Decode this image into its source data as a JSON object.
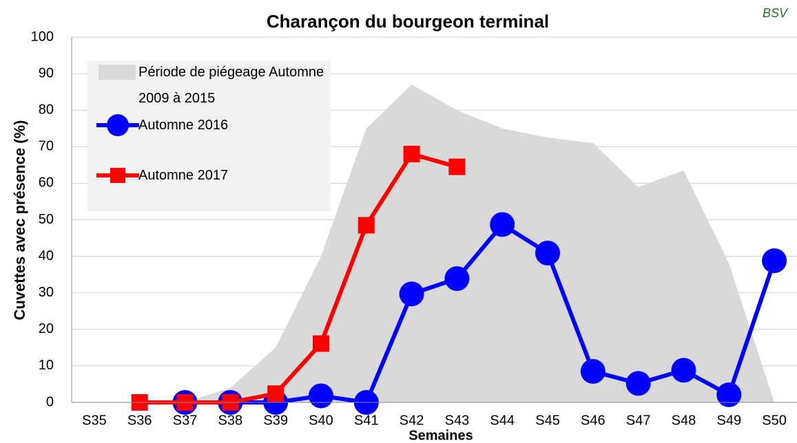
{
  "chart_data": {
    "type": "line",
    "title": "Charançon du bourgeon terminal",
    "logo": "BSV",
    "x_label": "Semaines",
    "y_label": "Cuvettes avec présence (%)",
    "categories": [
      "S35",
      "S36",
      "S37",
      "S38",
      "S39",
      "S40",
      "S41",
      "S42",
      "S43",
      "S44",
      "S45",
      "S46",
      "S47",
      "S48",
      "S49",
      "S50"
    ],
    "series": [
      {
        "name": "Période de piégeage Automne 2009 à 2015",
        "color": "#d9d9d9",
        "style": "area",
        "values": [
          null,
          null,
          0,
          4,
          15,
          40,
          75,
          87,
          80,
          75,
          72.5,
          71,
          59,
          63.5,
          38,
          0
        ]
      },
      {
        "name": "Automne 2016",
        "color": "#0000ff",
        "style": "line",
        "marker": "circle",
        "values": [
          null,
          null,
          0,
          0,
          0,
          1.8,
          0,
          29.7,
          33.9,
          48.7,
          40.9,
          8.5,
          5.2,
          8.8,
          2.1,
          38.8
        ]
      },
      {
        "name": "Automne 2017",
        "color": "#ff0000",
        "style": "line",
        "marker": "square",
        "values": [
          null,
          0,
          0,
          0,
          2.4,
          16.1,
          48.5,
          68,
          64.5,
          null,
          null,
          null,
          null,
          null,
          null,
          null
        ]
      }
    ],
    "ylim": [
      0,
      100
    ],
    "yticks": [
      0,
      10,
      20,
      30,
      40,
      50,
      60,
      70,
      80,
      90,
      100
    ],
    "grid": true,
    "legend_background": "#f2f2f2"
  }
}
